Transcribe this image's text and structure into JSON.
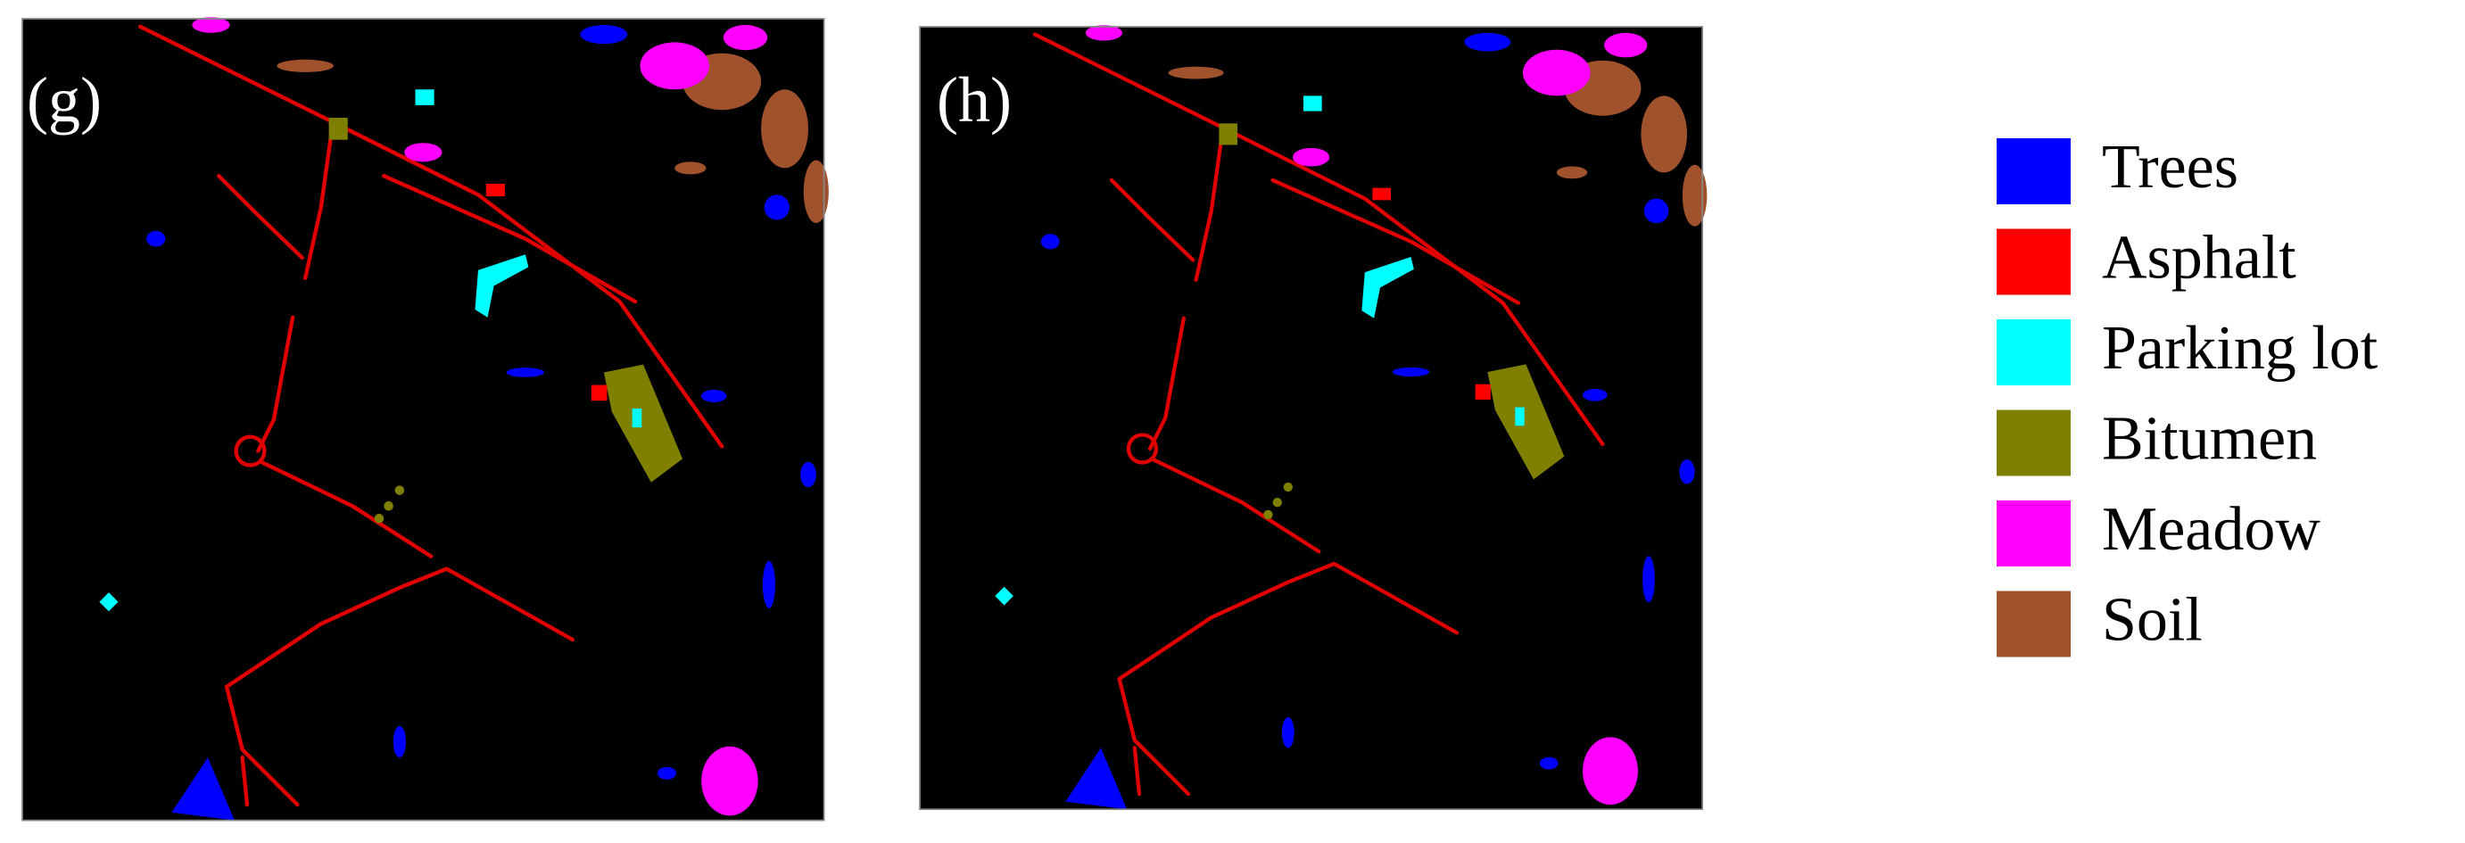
{
  "panels": [
    {
      "label": "(g)"
    },
    {
      "label": "(h)"
    }
  ],
  "legend": [
    {
      "label": "Trees",
      "color": "#0000ff"
    },
    {
      "label": "Asphalt",
      "color": "#ff0000"
    },
    {
      "label": "Parking lot",
      "color": "#00ffff"
    },
    {
      "label": "Bitumen",
      "color": "#808000"
    },
    {
      "label": "Meadow",
      "color": "#ff00ff"
    },
    {
      "label": "Soil",
      "color": "#a0522d"
    }
  ]
}
